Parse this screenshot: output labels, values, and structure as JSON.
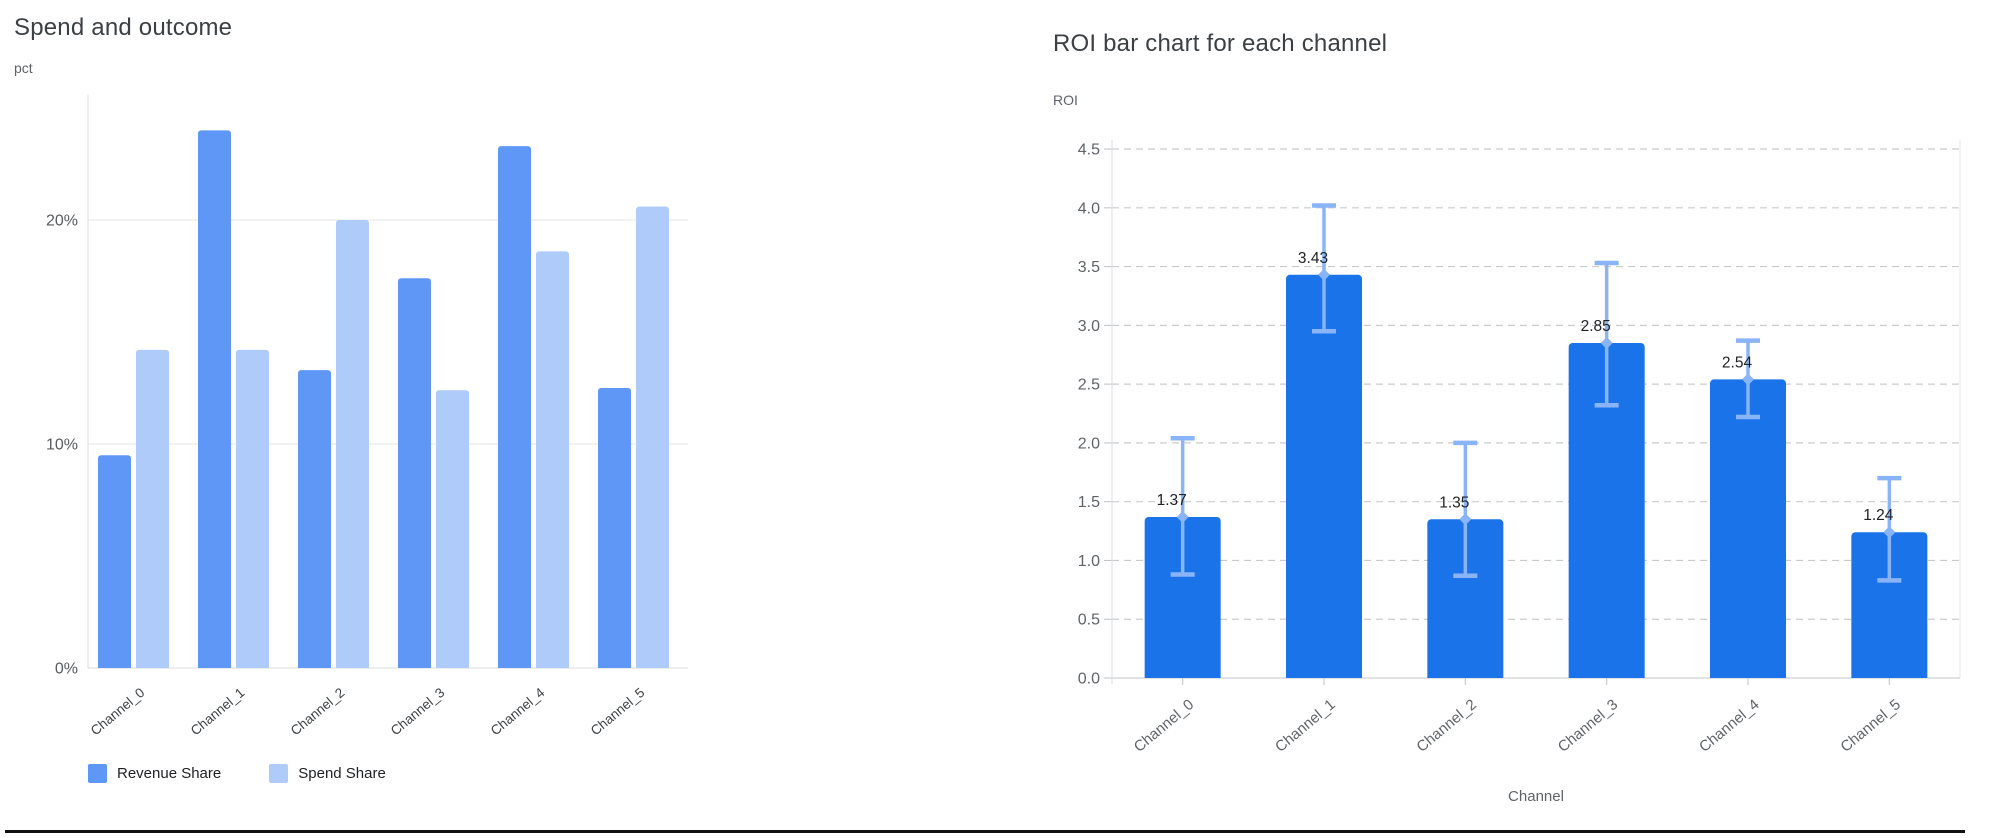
{
  "page": {
    "background": "#ffffff",
    "divider_color": "#111111",
    "text_colors": {
      "title": "#3c4043",
      "axis_unit": "#5f6368",
      "tick_label_left": "#575b5f",
      "tick_label_right": "#5f6368",
      "category_label_left": "#3c4043",
      "category_label_right": "#5f6368",
      "bar_value_label": "#202124",
      "legend_label": "#202124"
    },
    "grid_colors": {
      "solid_grid": "#e6e6e6",
      "dashed_grid": "#c9cbcd",
      "axis_line": "#dadce0",
      "tick_stub": "#bdc1c6"
    }
  },
  "chart_data": [
    {
      "type": "bar",
      "title": "Spend and outcome",
      "ylabel": "pct",
      "xlabel": "",
      "categories": [
        "Channel_0",
        "Channel_1",
        "Channel_2",
        "Channel_3",
        "Channel_4",
        "Channel_5"
      ],
      "series": [
        {
          "name": "Revenue Share",
          "color": "#5e97f6",
          "values": [
            9.5,
            24.0,
            13.3,
            17.4,
            23.3,
            12.5
          ]
        },
        {
          "name": "Spend Share",
          "color": "#aecbfa",
          "values": [
            14.2,
            14.2,
            20.0,
            12.4,
            18.6,
            20.6
          ]
        }
      ],
      "y_ticks": [
        {
          "value": 0,
          "label": "0%"
        },
        {
          "value": 10,
          "label": "10%"
        },
        {
          "value": 20,
          "label": "20%"
        }
      ],
      "ylim": [
        0,
        25.6
      ],
      "grid": "horizontal-solid",
      "legend_position": "bottom"
    },
    {
      "type": "bar",
      "title": "ROI bar chart for each channel",
      "ylabel": "ROI",
      "xlabel": "Channel",
      "categories": [
        "Channel_0",
        "Channel_1",
        "Channel_2",
        "Channel_3",
        "Channel_4",
        "Channel_5"
      ],
      "values": [
        1.37,
        3.43,
        1.35,
        2.85,
        2.54,
        1.24
      ],
      "bar_labels": [
        "1.37",
        "3.43",
        "1.35",
        "2.85",
        "2.54",
        "1.24"
      ],
      "error_low": [
        0.88,
        2.95,
        0.87,
        2.32,
        2.22,
        0.83
      ],
      "error_high": [
        2.04,
        4.02,
        2.0,
        3.53,
        2.87,
        1.7
      ],
      "ylim": [
        0,
        4.5
      ],
      "y_tick_step": 0.5,
      "bar_color": "#1a73e8",
      "error_color": "#8ab4f8",
      "grid": "horizontal-dashed",
      "legend_position": "none"
    }
  ]
}
